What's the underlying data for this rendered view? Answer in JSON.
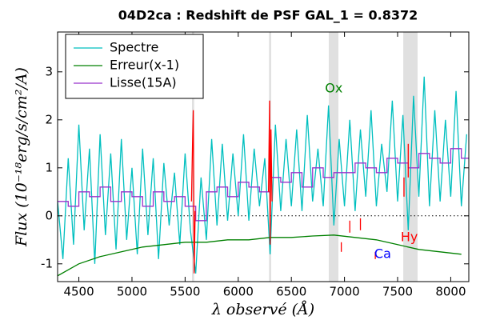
{
  "chart_data": {
    "type": "line",
    "title": "04D2ca : Redshift de PSF GAL_1 = 0.8372",
    "xlabel": "λ observé (Å)",
    "ylabel": "Flux (10⁻¹⁸erg/s/cm²/A)",
    "xlim": [
      4300,
      8170
    ],
    "ylim": [
      -1.37,
      3.83
    ],
    "xticks": [
      4500,
      5000,
      5500,
      6000,
      6500,
      7000,
      7500,
      8000
    ],
    "yticks": [
      -1,
      0,
      1,
      2,
      3
    ],
    "legend": "upper left",
    "hline": 0,
    "bands": {
      "color": "#e0e0e0",
      "ranges": [
        [
          5565,
          5585
        ],
        [
          6290,
          6310
        ],
        [
          6852,
          6943
        ],
        [
          7553,
          7688
        ]
      ]
    },
    "series": [
      {
        "name": "Spectre",
        "color": "#00bfbf",
        "x": [
          4300,
          4350,
          4400,
          4450,
          4500,
          4550,
          4600,
          4650,
          4700,
          4750,
          4800,
          4850,
          4900,
          4950,
          5000,
          5050,
          5100,
          5150,
          5200,
          5250,
          5300,
          5350,
          5400,
          5450,
          5500,
          5550,
          5600,
          5650,
          5700,
          5750,
          5800,
          5850,
          5900,
          5950,
          6000,
          6050,
          6100,
          6150,
          6200,
          6250,
          6300,
          6350,
          6400,
          6450,
          6500,
          6550,
          6600,
          6650,
          6700,
          6750,
          6800,
          6850,
          6900,
          6950,
          7000,
          7050,
          7100,
          7150,
          7200,
          7250,
          7300,
          7350,
          7400,
          7450,
          7500,
          7550,
          7600,
          7650,
          7700,
          7750,
          7800,
          7850,
          7900,
          7950,
          8000,
          8050,
          8100,
          8150
        ],
        "values": [
          0.3,
          -0.9,
          1.2,
          -0.6,
          1.9,
          -0.3,
          1.4,
          -1.0,
          1.7,
          -0.4,
          1.3,
          -0.7,
          1.6,
          -0.5,
          1.0,
          -0.8,
          1.4,
          -0.4,
          1.2,
          -0.9,
          1.1,
          -0.2,
          0.9,
          -0.6,
          1.3,
          -0.3,
          -1.2,
          0.8,
          -0.5,
          1.6,
          -0.2,
          1.5,
          -0.1,
          1.3,
          0.0,
          1.7,
          -0.1,
          1.4,
          0.2,
          1.2,
          -0.8,
          1.9,
          0.1,
          1.6,
          0.2,
          1.8,
          0.1,
          2.1,
          0.3,
          1.4,
          0.2,
          2.3,
          -0.2,
          1.6,
          0.2,
          2.0,
          0.1,
          1.8,
          0.4,
          2.2,
          0.2,
          1.5,
          0.5,
          2.4,
          0.3,
          2.1,
          -0.3,
          2.5,
          0.4,
          2.9,
          0.2,
          2.2,
          0.3,
          2.0,
          0.4,
          2.6,
          0.2,
          1.7
        ]
      },
      {
        "name": "Erreur(x-1)",
        "color": "#008000",
        "x": [
          4300,
          4500,
          4700,
          4900,
          5100,
          5300,
          5500,
          5700,
          5900,
          6100,
          6300,
          6500,
          6700,
          6900,
          7100,
          7300,
          7500,
          7700,
          7900,
          8100
        ],
        "values": [
          -1.25,
          -1.0,
          -0.85,
          -0.75,
          -0.65,
          -0.6,
          -0.55,
          -0.55,
          -0.5,
          -0.5,
          -0.45,
          -0.45,
          -0.42,
          -0.4,
          -0.45,
          -0.5,
          -0.6,
          -0.7,
          -0.75,
          -0.8
        ]
      },
      {
        "name": "Lisse(15A)",
        "color": "#9933cc",
        "drawstyle": "steps",
        "x": [
          4300,
          4400,
          4500,
          4600,
          4700,
          4800,
          4900,
          5000,
          5100,
          5200,
          5300,
          5400,
          5500,
          5600,
          5700,
          5800,
          5900,
          6000,
          6100,
          6200,
          6300,
          6400,
          6500,
          6600,
          6700,
          6800,
          6900,
          7000,
          7100,
          7200,
          7300,
          7400,
          7500,
          7600,
          7700,
          7800,
          7900,
          8000,
          8100
        ],
        "values": [
          0.3,
          0.2,
          0.5,
          0.4,
          0.6,
          0.3,
          0.5,
          0.4,
          0.2,
          0.5,
          0.3,
          0.4,
          0.2,
          -0.1,
          0.5,
          0.6,
          0.4,
          0.7,
          0.6,
          0.5,
          0.8,
          0.7,
          0.9,
          0.6,
          1.0,
          0.8,
          0.9,
          0.9,
          1.1,
          1.0,
          0.9,
          1.2,
          1.1,
          1.0,
          1.3,
          1.2,
          1.1,
          1.4,
          1.2
        ]
      },
      {
        "color": "#ff0000",
        "x": [
          5560,
          5570,
          5577,
          5585,
          5595
        ],
        "values": [
          0.3,
          1.5,
          2.2,
          -1.2,
          0.1
        ]
      },
      {
        "color": "#ff0000",
        "x": [
          6285,
          6295,
          6300,
          6308,
          6318
        ],
        "values": [
          0.5,
          2.4,
          -0.6,
          1.8,
          0.3
        ]
      }
    ],
    "line_markers": {
      "color": "#ff0000",
      "x": [
        6970,
        7050,
        7150,
        7290,
        7560,
        7600
      ],
      "y1": [
        -0.55,
        -0.1,
        -0.05,
        -0.75,
        0.8,
        1.5
      ],
      "y2": [
        -0.75,
        -0.35,
        -0.3,
        -0.9,
        0.4,
        0.8
      ]
    },
    "annotations": [
      {
        "text": "Ox",
        "x": 6900,
        "y": 2.65,
        "color": "#008000"
      },
      {
        "text": "Hy",
        "x": 7610,
        "y": -0.45,
        "color": "#ff0000"
      },
      {
        "text": "Ca",
        "x": 7360,
        "y": -0.8,
        "color": "#0000ff"
      }
    ]
  }
}
